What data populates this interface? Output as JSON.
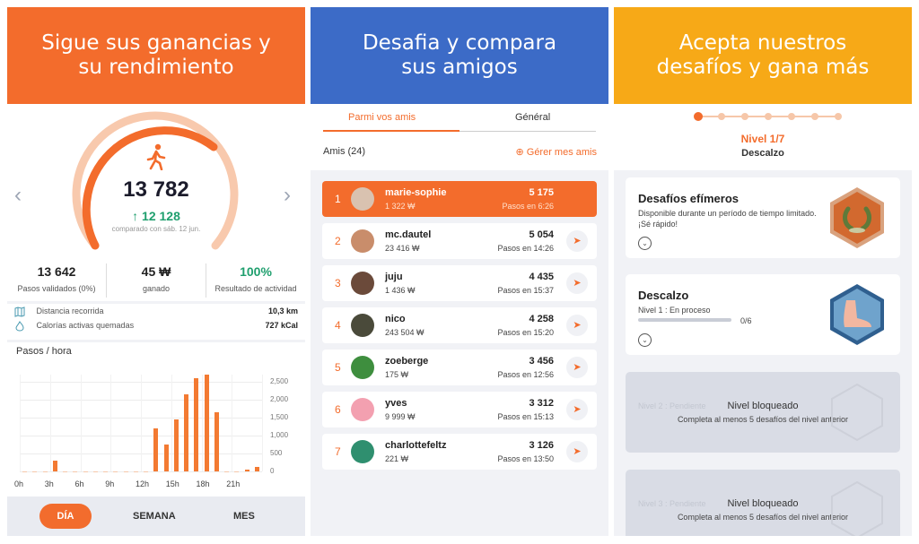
{
  "panel1": {
    "header": "Sigue sus ganancias y su rendimiento",
    "steps": "13 782",
    "delta": "↑ 12 128",
    "compare": "comparado con sáb. 12 jun.",
    "stats": [
      {
        "value": "13 642",
        "label": "Pasos validados (0%)"
      },
      {
        "value": "45 ₩",
        "label": "ganado"
      },
      {
        "value": "100%",
        "label": "Resultado de actividad"
      }
    ],
    "distance_label": "Distancia recorrida",
    "distance_value": "10,3 km",
    "calories_label": "Calorías activas quemadas",
    "calories_value": "727 kCal",
    "chart_title": "Pasos / hora",
    "tabs": {
      "day": "DÍA",
      "week": "SEMANA",
      "month": "MES"
    },
    "colors": {
      "accent": "#f36c2c",
      "positive": "#1f9f6e"
    }
  },
  "chart_data": {
    "type": "bar",
    "title": "Pasos / hora",
    "x": [
      0,
      1,
      2,
      3,
      4,
      5,
      6,
      7,
      8,
      9,
      10,
      11,
      12,
      13,
      14,
      15,
      16,
      17,
      18,
      19,
      20,
      21,
      22,
      23
    ],
    "values": [
      0,
      0,
      0,
      300,
      0,
      0,
      0,
      0,
      0,
      0,
      0,
      0,
      0,
      1200,
      750,
      1450,
      2150,
      2600,
      2700,
      1650,
      0,
      0,
      40,
      130
    ],
    "x_ticks": [
      "0h",
      "3h",
      "6h",
      "9h",
      "12h",
      "15h",
      "18h",
      "21h"
    ],
    "y_ticks": [
      "0",
      "500",
      "1,000",
      "1,500",
      "2,000",
      "2,500"
    ],
    "ylim": [
      0,
      2700
    ]
  },
  "panel2": {
    "header": "Desafia y compara sus amigos",
    "tab_friends": "Parmi vos amis",
    "tab_general": "Général",
    "friends_count": "Amis (24)",
    "manage": "⊕ Gérer mes amis",
    "friends": [
      {
        "rank": "1",
        "name": "marie-sophie",
        "sub": "1 322 ₩",
        "steps": "5 175",
        "time": "Pasos en 6:26",
        "color": "#d9c2b0"
      },
      {
        "rank": "2",
        "name": "mc.dautel",
        "sub": "23 416 ₩",
        "steps": "5 054",
        "time": "Pasos en 14:26",
        "color": "#c98d6b"
      },
      {
        "rank": "3",
        "name": "juju",
        "sub": "1 436 ₩",
        "steps": "4 435",
        "time": "Pasos en 15:37",
        "color": "#6b4a3a"
      },
      {
        "rank": "4",
        "name": "nico",
        "sub": "243 504 ₩",
        "steps": "4 258",
        "time": "Pasos en 15:20",
        "color": "#4a4a3a"
      },
      {
        "rank": "5",
        "name": "zoeberge",
        "sub": "175 ₩",
        "steps": "3 456",
        "time": "Pasos en 12:56",
        "color": "#3e8e3e"
      },
      {
        "rank": "6",
        "name": "yves",
        "sub": "9 999 ₩",
        "steps": "3 312",
        "time": "Pasos en 15:13",
        "color": "#f3a0b0"
      },
      {
        "rank": "7",
        "name": "charlottefeltz",
        "sub": "221 ₩",
        "steps": "3 126",
        "time": "Pasos en 13:50",
        "color": "#2f8f6f"
      }
    ],
    "send_icon": "send-icon"
  },
  "panel3": {
    "header": "Acepta nuestros desafíos y gana más",
    "level": "Nivel 1/7",
    "level_name": "Descalzo",
    "card1_title": "Desafíos efímeros",
    "card1_desc": "Disponible durante un período de tiempo limitado. ¡Sé rápido!",
    "card2_title": "Descalzo",
    "card2_desc": "Nivel 1 : En proceso",
    "card2_progress": "0/6",
    "card2_progress_fraction": 0,
    "locked_title": "Nivel bloqueado",
    "locked_desc": "Completa al menos 5 desafíos del nivel anterior",
    "locked1_ghost": "Nivel 2 : Pendiente",
    "locked2_ghost": "Nivel 3 : Pendiente",
    "colors": {
      "accent": "#f7a917",
      "orange": "#f36c2c"
    }
  }
}
